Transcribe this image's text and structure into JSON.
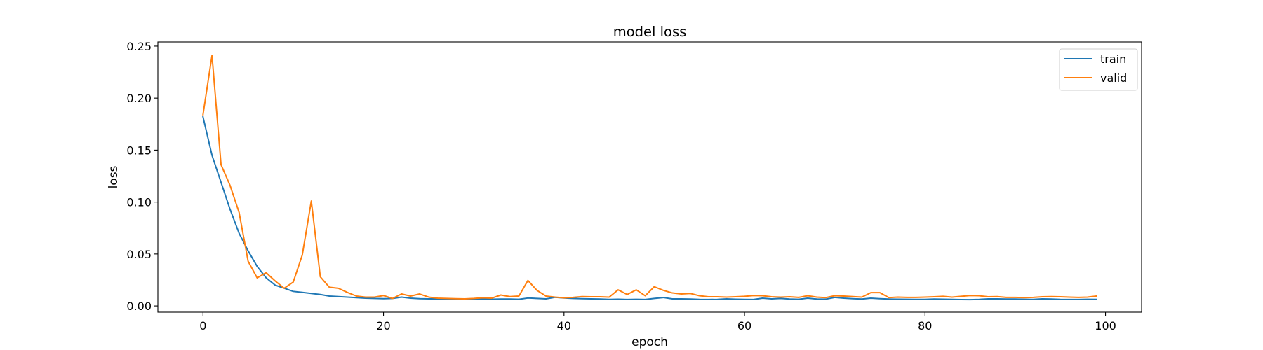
{
  "chart_data": {
    "type": "line",
    "title": "model loss",
    "xlabel": "epoch",
    "ylabel": "loss",
    "xlim": [
      -5,
      104
    ],
    "ylim": [
      -0.006,
      0.254
    ],
    "xticks": [
      0,
      20,
      40,
      60,
      80,
      100
    ],
    "yticks": [
      0.0,
      0.05,
      0.1,
      0.15,
      0.2,
      0.25
    ],
    "xtick_labels": [
      "0",
      "20",
      "40",
      "60",
      "80",
      "100"
    ],
    "ytick_labels": [
      "0.00",
      "0.05",
      "0.10",
      "0.15",
      "0.20",
      "0.25"
    ],
    "grid": false,
    "legend": {
      "position": "top-right",
      "entries": [
        "train",
        "valid"
      ]
    },
    "series": [
      {
        "name": "train",
        "color": "#1f77b4",
        "x": [
          0,
          1,
          2,
          3,
          4,
          5,
          6,
          7,
          8,
          9,
          10,
          11,
          12,
          13,
          14,
          15,
          16,
          17,
          18,
          19,
          20,
          21,
          22,
          23,
          24,
          25,
          26,
          27,
          28,
          29,
          30,
          31,
          32,
          33,
          34,
          35,
          36,
          37,
          38,
          39,
          40,
          41,
          42,
          43,
          44,
          45,
          46,
          47,
          48,
          49,
          50,
          51,
          52,
          53,
          54,
          55,
          56,
          57,
          58,
          59,
          60,
          61,
          62,
          63,
          64,
          65,
          66,
          67,
          68,
          69,
          70,
          71,
          72,
          73,
          74,
          75,
          76,
          77,
          78,
          79,
          80,
          81,
          82,
          83,
          84,
          85,
          86,
          87,
          88,
          89,
          90,
          91,
          92,
          93,
          94,
          95,
          96,
          97,
          98,
          99
        ],
        "values": [
          0.182,
          0.145,
          0.119,
          0.093,
          0.07,
          0.053,
          0.038,
          0.027,
          0.02,
          0.017,
          0.014,
          0.013,
          0.012,
          0.011,
          0.0095,
          0.009,
          0.0085,
          0.008,
          0.0075,
          0.0072,
          0.007,
          0.0072,
          0.0085,
          0.0075,
          0.007,
          0.0068,
          0.0068,
          0.0067,
          0.0066,
          0.0066,
          0.0066,
          0.0067,
          0.0065,
          0.0066,
          0.0066,
          0.0064,
          0.0076,
          0.0072,
          0.0068,
          0.0083,
          0.0076,
          0.0072,
          0.007,
          0.0068,
          0.0066,
          0.0063,
          0.0065,
          0.0062,
          0.0064,
          0.0062,
          0.0072,
          0.0081,
          0.0068,
          0.0068,
          0.0066,
          0.0063,
          0.0062,
          0.0063,
          0.0068,
          0.0065,
          0.0063,
          0.0062,
          0.0075,
          0.0068,
          0.0072,
          0.0066,
          0.0064,
          0.0075,
          0.0066,
          0.0065,
          0.0082,
          0.0075,
          0.007,
          0.0066,
          0.0075,
          0.007,
          0.0066,
          0.0065,
          0.0064,
          0.0063,
          0.0063,
          0.0066,
          0.0065,
          0.0063,
          0.0061,
          0.006,
          0.0063,
          0.0068,
          0.0068,
          0.0066,
          0.0066,
          0.0064,
          0.0063,
          0.0068,
          0.0066,
          0.0063,
          0.0062,
          0.0062,
          0.0064,
          0.0063
        ]
      },
      {
        "name": "valid",
        "color": "#ff7f0e",
        "x": [
          0,
          1,
          2,
          3,
          4,
          5,
          6,
          7,
          8,
          9,
          10,
          11,
          12,
          13,
          14,
          15,
          16,
          17,
          18,
          19,
          20,
          21,
          22,
          23,
          24,
          25,
          26,
          27,
          28,
          29,
          30,
          31,
          32,
          33,
          34,
          35,
          36,
          37,
          38,
          39,
          40,
          41,
          42,
          43,
          44,
          45,
          46,
          47,
          48,
          49,
          50,
          51,
          52,
          53,
          54,
          55,
          56,
          57,
          58,
          59,
          60,
          61,
          62,
          63,
          64,
          65,
          66,
          67,
          68,
          69,
          70,
          71,
          72,
          73,
          74,
          75,
          76,
          77,
          78,
          79,
          80,
          81,
          82,
          83,
          84,
          85,
          86,
          87,
          88,
          89,
          90,
          91,
          92,
          93,
          94,
          95,
          96,
          97,
          98,
          99
        ],
        "values": [
          0.184,
          0.241,
          0.136,
          0.116,
          0.09,
          0.043,
          0.027,
          0.032,
          0.024,
          0.017,
          0.023,
          0.049,
          0.101,
          0.028,
          0.018,
          0.017,
          0.013,
          0.0095,
          0.0085,
          0.0085,
          0.01,
          0.0072,
          0.0115,
          0.0095,
          0.0115,
          0.0085,
          0.0075,
          0.0072,
          0.007,
          0.0068,
          0.0072,
          0.0078,
          0.0075,
          0.0105,
          0.009,
          0.0095,
          0.0245,
          0.015,
          0.0095,
          0.0085,
          0.0078,
          0.0082,
          0.009,
          0.0088,
          0.0088,
          0.0085,
          0.0155,
          0.011,
          0.0155,
          0.0098,
          0.0185,
          0.015,
          0.0125,
          0.0115,
          0.012,
          0.0098,
          0.0088,
          0.0088,
          0.0085,
          0.0088,
          0.0092,
          0.01,
          0.0098,
          0.0088,
          0.0085,
          0.0088,
          0.0082,
          0.0098,
          0.0085,
          0.008,
          0.0098,
          0.0095,
          0.009,
          0.0085,
          0.0128,
          0.0128,
          0.008,
          0.0085,
          0.0082,
          0.0082,
          0.0085,
          0.0088,
          0.0092,
          0.0085,
          0.0092,
          0.01,
          0.0098,
          0.0088,
          0.009,
          0.0082,
          0.0082,
          0.008,
          0.0082,
          0.0088,
          0.009,
          0.0088,
          0.0085,
          0.0082,
          0.0085,
          0.0095
        ]
      }
    ]
  }
}
